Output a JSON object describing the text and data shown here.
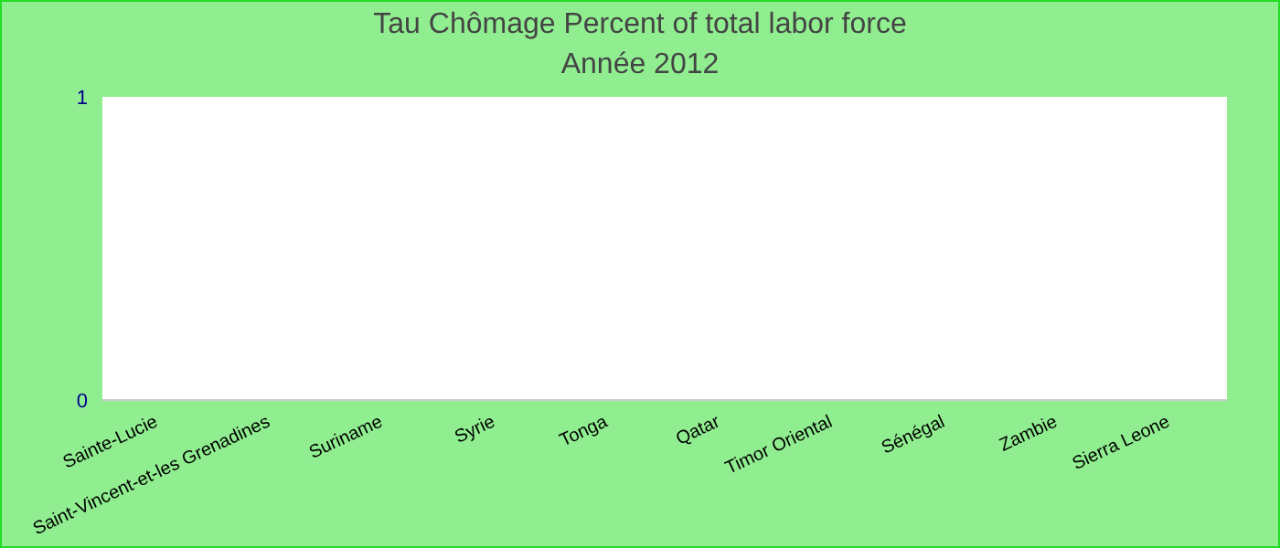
{
  "chart_data": {
    "type": "bar",
    "title": "Tau Chômage  Percent of total labor force",
    "subtitle": "Année 2012",
    "categories": [
      "Sainte-Lucie",
      "Saint-Vincent-et-les Grenadines",
      "Suriname",
      "Syrie",
      "Tonga",
      "Qatar",
      "Timor Oriental",
      "Sénégal",
      "Zambie",
      "Sierra Leone"
    ],
    "values": [
      null,
      null,
      null,
      null,
      null,
      null,
      null,
      null,
      null,
      null
    ],
    "ylim": [
      0,
      1
    ],
    "yticks": [
      0,
      1
    ],
    "grid": false,
    "legend": false
  }
}
